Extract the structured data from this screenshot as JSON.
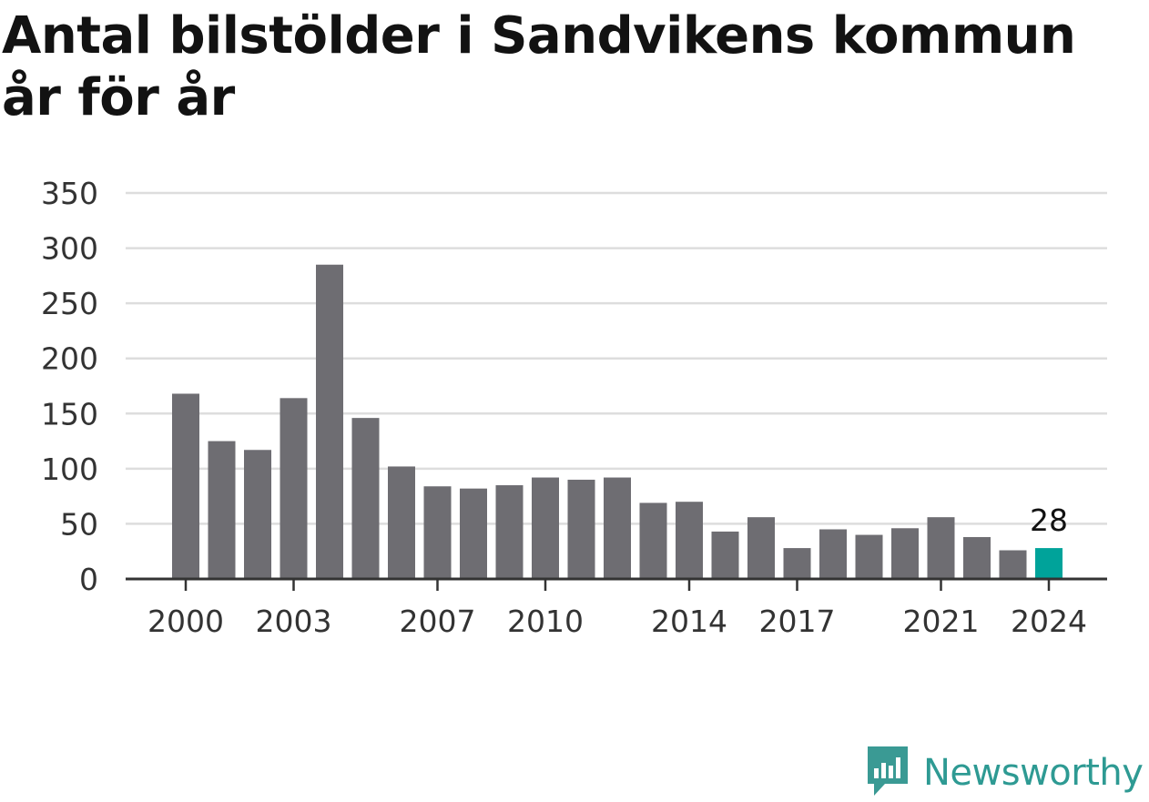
{
  "title": "Antal bilstölder i Sandvikens kommun år för år",
  "brand": {
    "name": "Newsworthy",
    "icon": "newsworthy-logo-icon",
    "color": "#3a9a94"
  },
  "colors": {
    "bar": "#6e6d72",
    "highlight": "#00a39a",
    "grid": "#dddddd",
    "axis": "#333333"
  },
  "chart_data": {
    "type": "bar",
    "title": "Antal bilstölder i Sandvikens kommun år för år",
    "xlabel": "",
    "ylabel": "",
    "ylim": [
      0,
      350
    ],
    "yticks": [
      0,
      50,
      100,
      150,
      200,
      250,
      300,
      350
    ],
    "xtick_labels": [
      "2000",
      "2003",
      "2007",
      "2010",
      "2014",
      "2017",
      "2021",
      "2024"
    ],
    "grid": true,
    "categories": [
      "2000",
      "2001",
      "2002",
      "2003",
      "2004",
      "2005",
      "2006",
      "2007",
      "2008",
      "2009",
      "2010",
      "2011",
      "2012",
      "2013",
      "2014",
      "2015",
      "2016",
      "2017",
      "2018",
      "2019",
      "2020",
      "2021",
      "2022",
      "2023",
      "2024"
    ],
    "values": [
      168,
      125,
      117,
      164,
      285,
      146,
      102,
      84,
      82,
      85,
      92,
      90,
      92,
      69,
      70,
      43,
      56,
      28,
      45,
      40,
      46,
      56,
      38,
      26,
      28
    ],
    "highlight": {
      "category": "2024",
      "label": "28"
    }
  }
}
